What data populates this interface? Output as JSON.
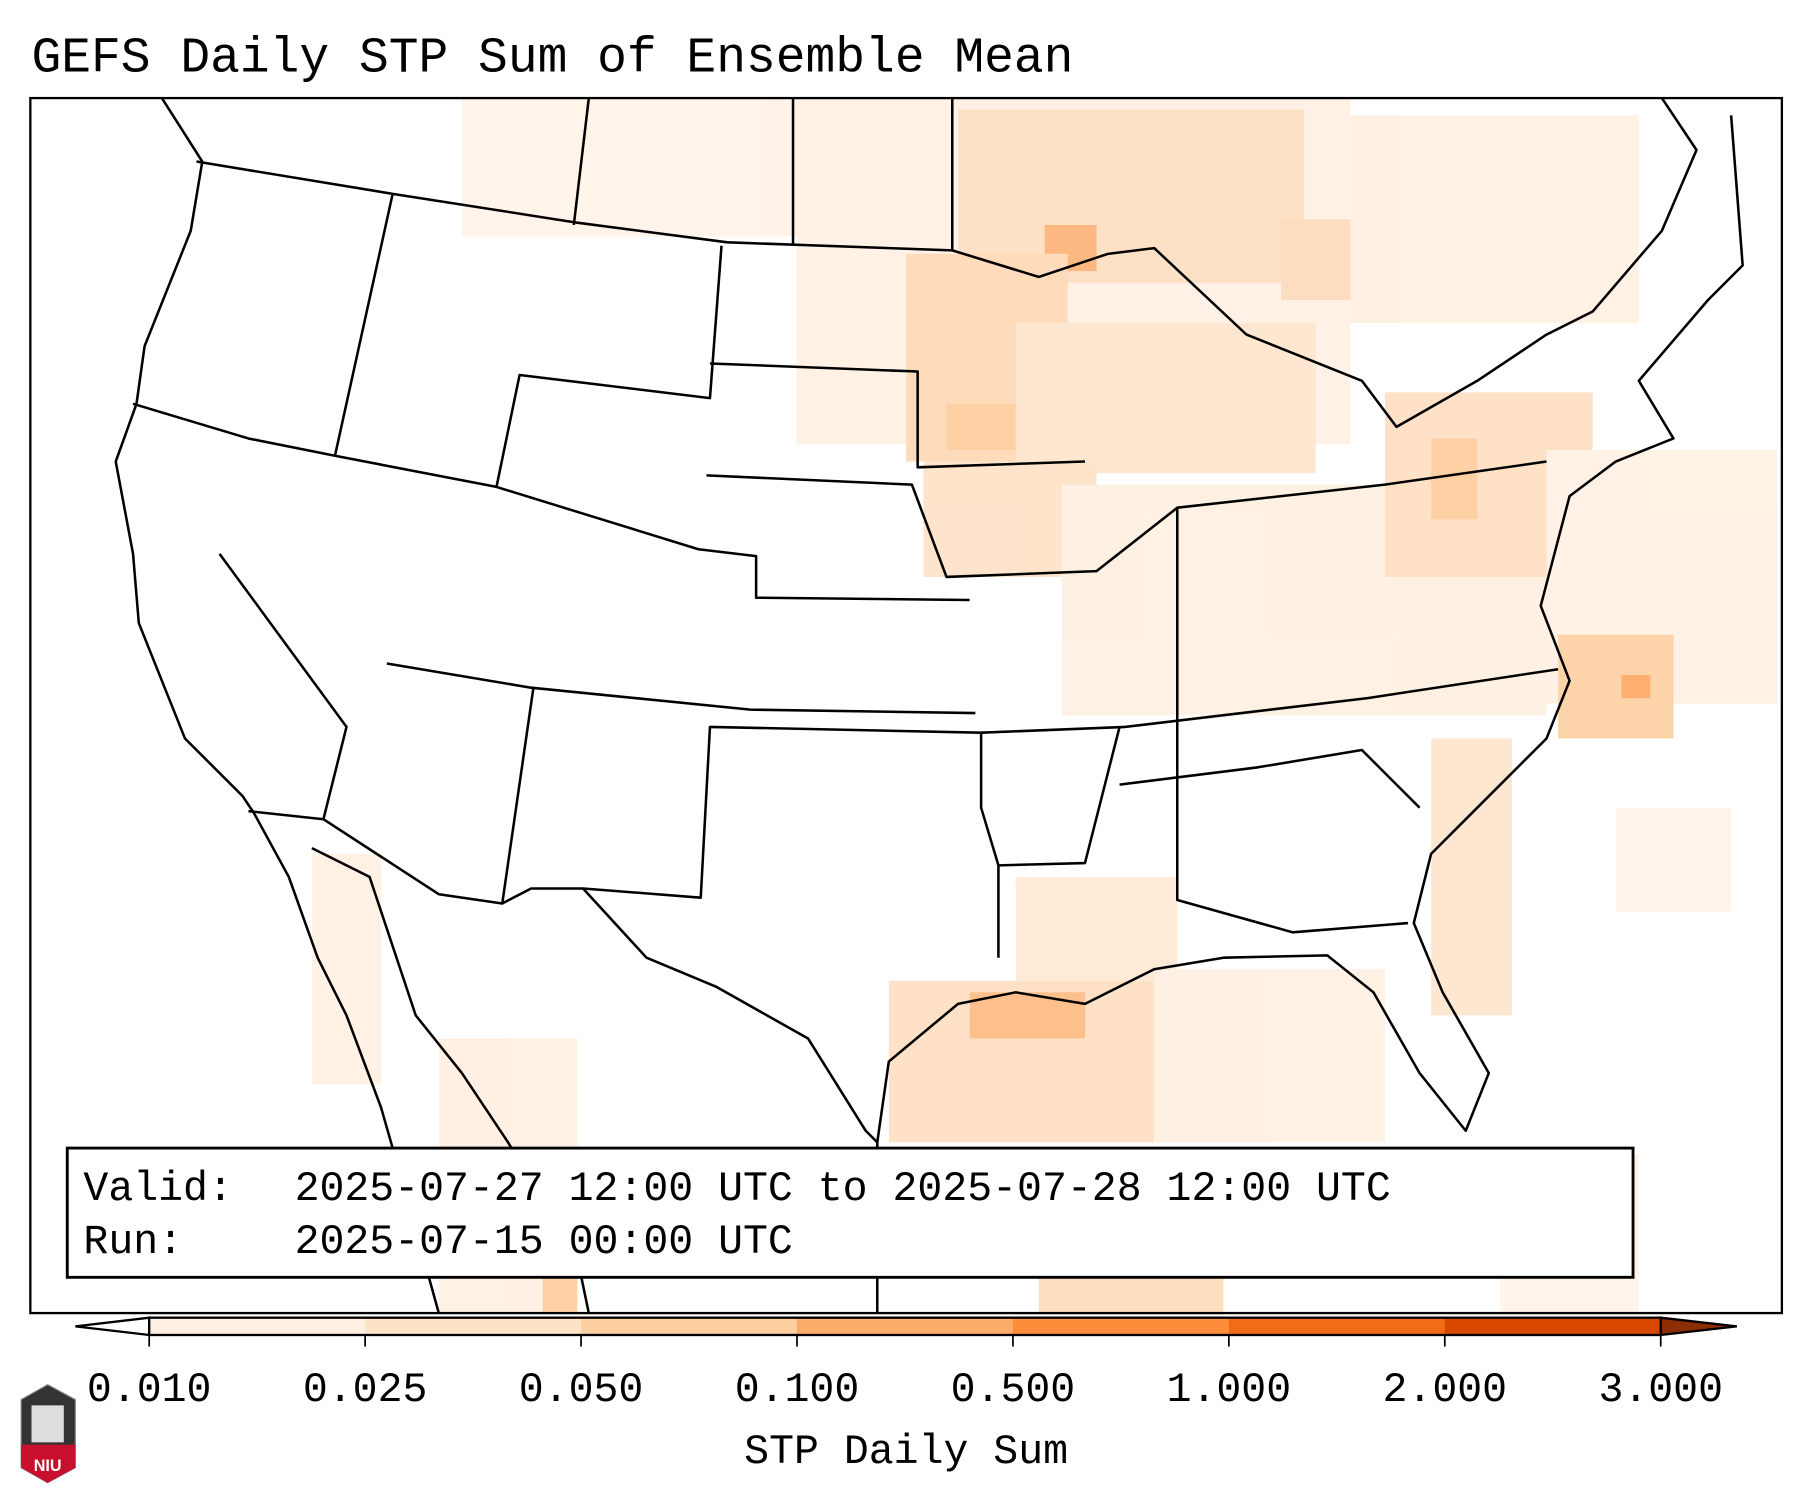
{
  "title": "GEFS Daily STP Sum of Ensemble Mean",
  "info_box": {
    "valid_label": "Valid:",
    "valid_value": "2025-07-27 12:00 UTC to 2025-07-28 12:00 UTC",
    "run_label": "Run:",
    "run_value": "2025-07-15 00:00 UTC"
  },
  "colorbar": {
    "label": "STP Daily Sum",
    "ticks": [
      "0.010",
      "0.025",
      "0.050",
      "0.100",
      "0.500",
      "1.000",
      "2.000",
      "3.000"
    ],
    "colors": [
      "#fff0e3",
      "#fee2c6",
      "#fdcfa0",
      "#fdab68",
      "#fd8c3b",
      "#f26b15",
      "#d94801"
    ],
    "over_color": "#8c2d04",
    "under_color": "#ffffff"
  },
  "logo": {
    "text": "NIU"
  }
}
